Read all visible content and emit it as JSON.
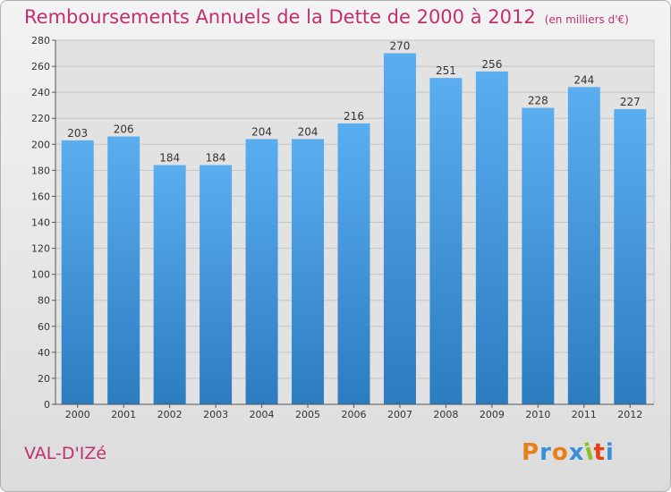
{
  "header": {
    "title": "Remboursements Annuels de la Dette de 2000 à 2012",
    "unit": "(en milliers d'€)"
  },
  "footer": {
    "commune": "VAL-D'IZé",
    "logo": "Proxiti"
  },
  "colors": {
    "title": "#c0306e",
    "bar_top": "#5aaef0",
    "bar_bottom": "#2c7cc0",
    "logo": [
      "#e8801a",
      "#3b8fd8",
      "#e8801a",
      "#3b8fd8",
      "#8bbf2c",
      "#e8401a",
      "#3b8fd8"
    ]
  },
  "chart_data": {
    "type": "bar",
    "title": "Remboursements Annuels de la Dette de 2000 à 2012",
    "subtitle": "(en milliers d'€)",
    "xlabel": "",
    "ylabel": "",
    "categories": [
      "2000",
      "2001",
      "2002",
      "2003",
      "2004",
      "2005",
      "2006",
      "2007",
      "2008",
      "2009",
      "2010",
      "2011",
      "2012"
    ],
    "values": [
      203,
      206,
      184,
      184,
      204,
      204,
      216,
      270,
      251,
      256,
      228,
      244,
      227
    ],
    "ylim": [
      0,
      280
    ],
    "yticks": [
      0,
      20,
      40,
      60,
      80,
      100,
      120,
      140,
      160,
      180,
      200,
      220,
      240,
      260,
      280
    ],
    "grid": true,
    "legend": "none"
  }
}
